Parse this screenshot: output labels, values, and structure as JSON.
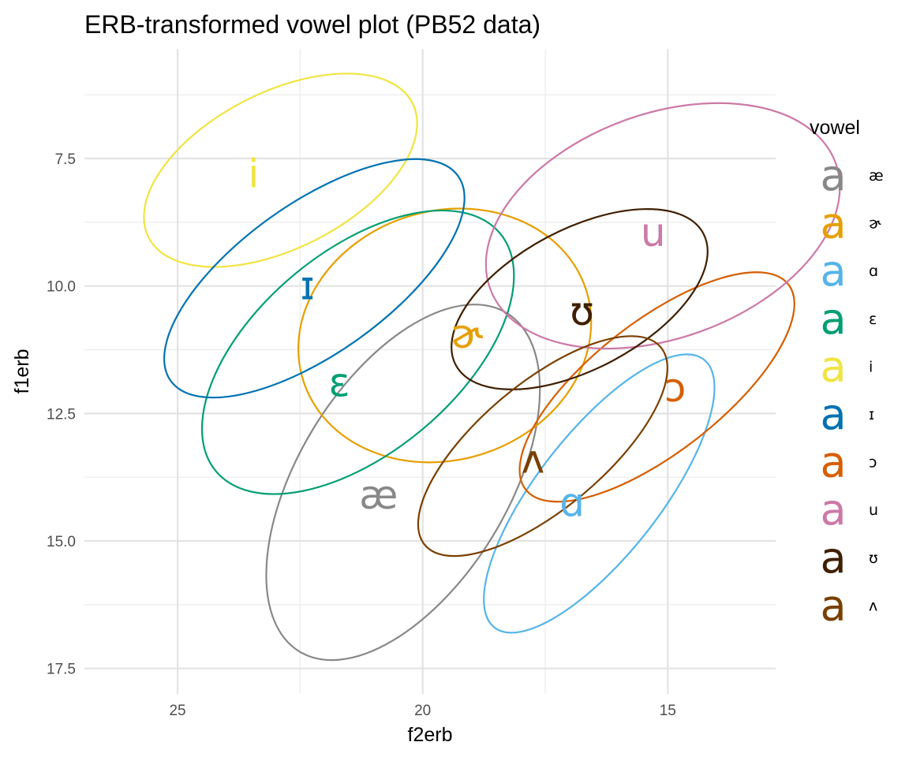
{
  "chart_data": {
    "type": "scatter",
    "title": "ERB-transformed vowel plot (PB52 data)",
    "xlabel": "f2erb",
    "ylabel": "f1erb",
    "x_reversed": true,
    "y_reversed": true,
    "xlim": [
      26.9,
      12.8
    ],
    "ylim": [
      5.35,
      18.0
    ],
    "x_ticks": [
      25,
      20,
      15
    ],
    "y_ticks": [
      7.5,
      10.0,
      12.5,
      15.0,
      17.5
    ],
    "x_tick_labels": [
      "25",
      "20",
      "15"
    ],
    "y_tick_labels": [
      "7.5",
      "10.0",
      "12.5",
      "15.0",
      "17.5"
    ],
    "grid": true,
    "legend": {
      "title": "vowel",
      "position": "right",
      "key_glyph": "a"
    },
    "series": [
      {
        "name": "æ",
        "color": "#888888",
        "label": {
          "x": 20.9,
          "y": 14.1
        },
        "ellipse": {
          "cx": 20.4,
          "cy": 13.85,
          "rx": 4.05,
          "ry": 2.05,
          "angle": -58.5
        }
      },
      {
        "name": "ɚ",
        "color": "#E69F00",
        "label": {
          "x": 19.1,
          "y": 10.95
        },
        "ellipse": {
          "cx": 19.55,
          "cy": 10.97,
          "rx": 3.03,
          "ry": 2.44,
          "angle": -18
        }
      },
      {
        "name": "ɑ",
        "color": "#56B4E9",
        "label": {
          "x": 16.95,
          "y": 14.25
        },
        "ellipse": {
          "cx": 16.4,
          "cy": 14.07,
          "rx": 3.47,
          "ry": 1.2,
          "angle": -52
        }
      },
      {
        "name": "ɛ",
        "color": "#009E73",
        "label": {
          "x": 21.7,
          "y": 11.9
        },
        "ellipse": {
          "cx": 21.32,
          "cy": 11.3,
          "rx": 3.78,
          "ry": 1.97,
          "angle": -40
        }
      },
      {
        "name": "i",
        "color": "#F0E442",
        "label": {
          "x": 23.45,
          "y": 7.8
        },
        "ellipse": {
          "cx": 22.9,
          "cy": 7.73,
          "rx": 3.02,
          "ry": 1.53,
          "angle": -27
        }
      },
      {
        "name": "ɪ",
        "color": "#0072B2",
        "label": {
          "x": 22.35,
          "y": 10.0
        },
        "ellipse": {
          "cx": 22.21,
          "cy": 9.85,
          "rx": 3.6,
          "ry": 1.47,
          "angle": -35.5
        }
      },
      {
        "name": "ɔ",
        "color": "#D55E00",
        "label": {
          "x": 14.85,
          "y": 12.0
        },
        "ellipse": {
          "cx": 15.22,
          "cy": 11.98,
          "rx": 3.4,
          "ry": 1.28,
          "angle": -38
        }
      },
      {
        "name": "u",
        "color": "#CC79A7",
        "label": {
          "x": 15.3,
          "y": 8.95
        },
        "ellipse": {
          "cx": 15.1,
          "cy": 8.82,
          "rx": 3.75,
          "ry": 2.2,
          "angle": -20
        }
      },
      {
        "name": "ʊ",
        "color": "#3F1F00",
        "label": {
          "x": 16.75,
          "y": 10.5
        },
        "ellipse": {
          "cx": 16.8,
          "cy": 10.26,
          "rx": 2.86,
          "ry": 1.37,
          "angle": -28
        }
      },
      {
        "name": "ʌ",
        "color": "#7A4000",
        "label": {
          "x": 17.75,
          "y": 13.4
        },
        "ellipse": {
          "cx": 17.55,
          "cy": 13.14,
          "rx": 3.14,
          "ry": 1.23,
          "angle": -40
        }
      }
    ]
  }
}
